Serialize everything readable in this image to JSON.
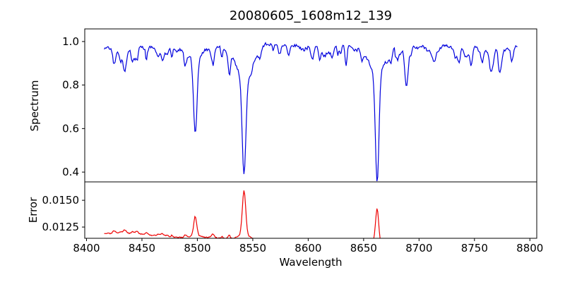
{
  "chart_data": {
    "type": "line",
    "title": "20080605_1608m12_139",
    "xlabel": "Wavelength",
    "xlim": [
      8398.4,
      8806.2
    ],
    "xticks": [
      8400,
      8450,
      8500,
      8550,
      8600,
      8650,
      8700,
      8750,
      8800
    ],
    "x_range_data": [
      8416,
      8789
    ],
    "x_step": 0.75,
    "seed": 20080605,
    "panels": [
      {
        "name": "spectrum",
        "ylabel": "Spectrum",
        "ylim": [
          0.355,
          1.058
        ],
        "yticks": [
          0.4,
          0.6,
          0.8,
          1.0
        ],
        "ytick_labels": [
          "0.4",
          "0.6",
          "0.8",
          "1.0"
        ],
        "color": "#0000dd",
        "continuum": {
          "base": 0.962,
          "bump_amp": 0.018,
          "bump_center": 8595,
          "bump_width": 110
        },
        "noise": {
          "white": 0.007,
          "waves": [
            [
              55,
              0.009
            ],
            [
              23,
              0.007
            ],
            [
              9.5,
              0.005
            ]
          ]
        },
        "minor_lines": {
          "count": 46,
          "depth_min": 0.015,
          "depth_max": 0.06,
          "width_min": 0.6,
          "width_max": 1.6
        },
        "absorption_lines": [
          {
            "center": 8434.5,
            "core_depth": 0.075,
            "core_width": 1.3,
            "wing_depth": 0.012,
            "wing_width": 3
          },
          {
            "center": 8446.0,
            "core_depth": 0.045,
            "core_width": 1.0,
            "wing_depth": 0,
            "wing_width": 1
          },
          {
            "center": 8468.5,
            "core_depth": 0.06,
            "core_width": 1.3,
            "wing_depth": 0.012,
            "wing_width": 3
          },
          {
            "center": 8498.0,
            "core_depth": 0.3,
            "core_width": 1.5,
            "wing_depth": 0.065,
            "wing_width": 5
          },
          {
            "center": 8514.1,
            "core_depth": 0.088,
            "core_width": 1.3,
            "wing_depth": 0.012,
            "wing_width": 3
          },
          {
            "center": 8522.1,
            "core_depth": 0.05,
            "core_width": 1.0,
            "wing_depth": 0,
            "wing_width": 1
          },
          {
            "center": 8542.1,
            "core_depth": 0.465,
            "core_width": 1.7,
            "wing_depth": 0.125,
            "wing_width": 8
          },
          {
            "center": 8582.3,
            "core_depth": 0.055,
            "core_width": 1.2,
            "wing_depth": 0,
            "wing_width": 1
          },
          {
            "center": 8610.4,
            "core_depth": 0.07,
            "core_width": 1.3,
            "wing_depth": 0,
            "wing_width": 1
          },
          {
            "center": 8621.6,
            "core_depth": 0.05,
            "core_width": 1.1,
            "wing_depth": 0,
            "wing_width": 1
          },
          {
            "center": 8634.0,
            "core_depth": 0.05,
            "core_width": 1.1,
            "wing_depth": 0,
            "wing_width": 1
          },
          {
            "center": 8648.5,
            "core_depth": 0.045,
            "core_width": 1.0,
            "wing_depth": 0,
            "wing_width": 1
          },
          {
            "center": 8662.1,
            "core_depth": 0.455,
            "core_width": 1.6,
            "wing_depth": 0.115,
            "wing_width": 7
          },
          {
            "center": 8674.8,
            "core_depth": 0.065,
            "core_width": 1.2,
            "wing_depth": 0,
            "wing_width": 1
          },
          {
            "center": 8688.6,
            "core_depth": 0.155,
            "core_width": 1.4,
            "wing_depth": 0.022,
            "wing_width": 3.5
          },
          {
            "center": 8713.2,
            "core_depth": 0.06,
            "core_width": 1.2,
            "wing_depth": 0,
            "wing_width": 1
          },
          {
            "center": 8736.0,
            "core_depth": 0.06,
            "core_width": 1.2,
            "wing_depth": 0,
            "wing_width": 1
          },
          {
            "center": 8747.3,
            "core_depth": 0.055,
            "core_width": 1.1,
            "wing_depth": 0,
            "wing_width": 1
          },
          {
            "center": 8757.0,
            "core_depth": 0.05,
            "core_width": 1.1,
            "wing_depth": 0,
            "wing_width": 1
          },
          {
            "center": 8764.5,
            "core_depth": 0.07,
            "core_width": 1.2,
            "wing_depth": 0,
            "wing_width": 1
          },
          {
            "center": 8773.5,
            "core_depth": 0.065,
            "core_width": 1.2,
            "wing_depth": 0,
            "wing_width": 1
          }
        ]
      },
      {
        "name": "error",
        "ylabel": "Error",
        "ylim": [
          0.01145,
          0.01672
        ],
        "yticks": [
          0.0125,
          0.015
        ],
        "ytick_labels": [
          "0.0125",
          "0.0150"
        ],
        "color": "#ee0000",
        "baseline": {
          "start": 0.01195,
          "slope_per_angstrom": -5.4e-06,
          "ref_wavelength": 8417
        },
        "noise": {
          "white": 5e-05,
          "wave_period": 70,
          "wave_amp": 7e-05
        },
        "line_coupling": 0.0035,
        "error_peaks": [
          {
            "center": 8498.0,
            "amp": 0.00165,
            "width": 1.3,
            "wing_amp": 0.0002,
            "wing_width": 4
          },
          {
            "center": 8542.1,
            "amp": 0.00415,
            "width": 1.5,
            "wing_amp": 0.00055,
            "wing_width": 6
          },
          {
            "center": 8662.1,
            "amp": 0.003,
            "width": 1.4,
            "wing_amp": 0.0004,
            "wing_width": 5
          },
          {
            "center": 8688.6,
            "amp": 0.0007,
            "width": 1.3,
            "wing_amp": 0,
            "wing_width": 1
          }
        ]
      }
    ],
    "frame_color": "#000000",
    "background": "#ffffff"
  }
}
